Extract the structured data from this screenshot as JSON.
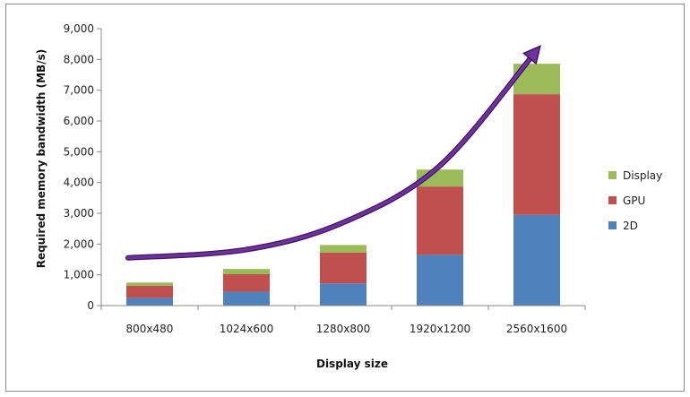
{
  "chart_data": {
    "type": "bar",
    "stacked": true,
    "categories": [
      "800x480",
      "1024x600",
      "1280x800",
      "1920x1200",
      "2560x1600"
    ],
    "series": [
      {
        "name": "2D",
        "color": "#4f81bd",
        "values": [
          250,
          450,
          720,
          1650,
          2950
        ]
      },
      {
        "name": "GPU",
        "color": "#c0504d",
        "values": [
          400,
          570,
          1000,
          2220,
          3920
        ]
      },
      {
        "name": "Display",
        "color": "#9bbb59",
        "values": [
          100,
          170,
          250,
          550,
          990
        ]
      }
    ],
    "xlabel": "Display size",
    "ylabel": "Required memory bandwidth (MB/s)",
    "ylim": [
      0,
      9000
    ],
    "yticks": [
      "0",
      "1,000",
      "2,000",
      "3,000",
      "4,000",
      "5,000",
      "6,000",
      "7,000",
      "8,000",
      "9,000"
    ],
    "legend": "right",
    "grid": false,
    "trend_arrow": {
      "color": "#7030a0",
      "points": [
        [
          0,
          1550
        ],
        [
          1,
          1820
        ],
        [
          2,
          2700
        ],
        [
          3,
          4550
        ],
        [
          4,
          8300
        ]
      ]
    }
  }
}
